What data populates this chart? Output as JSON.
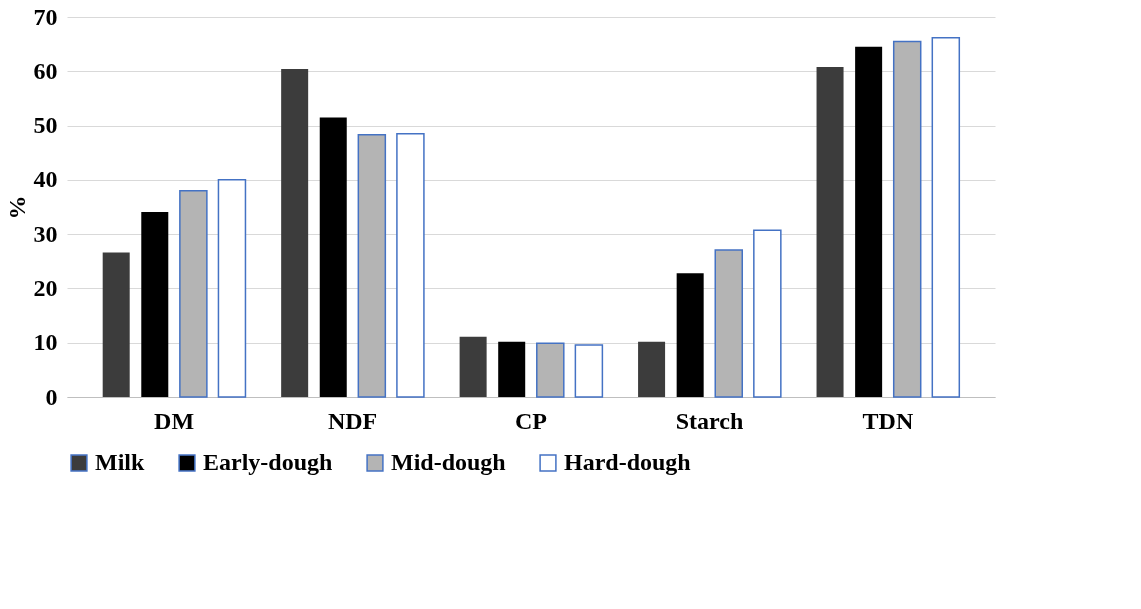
{
  "chart_data": {
    "type": "bar",
    "ylabel": "%",
    "categories": [
      "DM",
      "NDF",
      "CP",
      "Starch",
      "TDN"
    ],
    "series": [
      {
        "name": "Milk",
        "color": "#3c3c3c",
        "values": [
          26.6,
          60.4,
          11.1,
          10.2,
          60.8
        ]
      },
      {
        "name": "Early-dough",
        "color": "#000000",
        "values": [
          34.1,
          51.5,
          10.2,
          22.8,
          64.5
        ]
      },
      {
        "name": "Mid-dough",
        "color": "#b4b4b4",
        "values": [
          38.0,
          48.3,
          9.9,
          27.1,
          65.5
        ]
      },
      {
        "name": "Hard-dough",
        "color": "#ffffff",
        "values": [
          40.0,
          48.5,
          9.6,
          30.7,
          66.2
        ]
      }
    ],
    "ylim": [
      0,
      70
    ],
    "yticks": [
      0,
      10,
      20,
      30,
      40,
      50,
      60,
      70
    ],
    "grid": "y",
    "legend": "bottom"
  }
}
